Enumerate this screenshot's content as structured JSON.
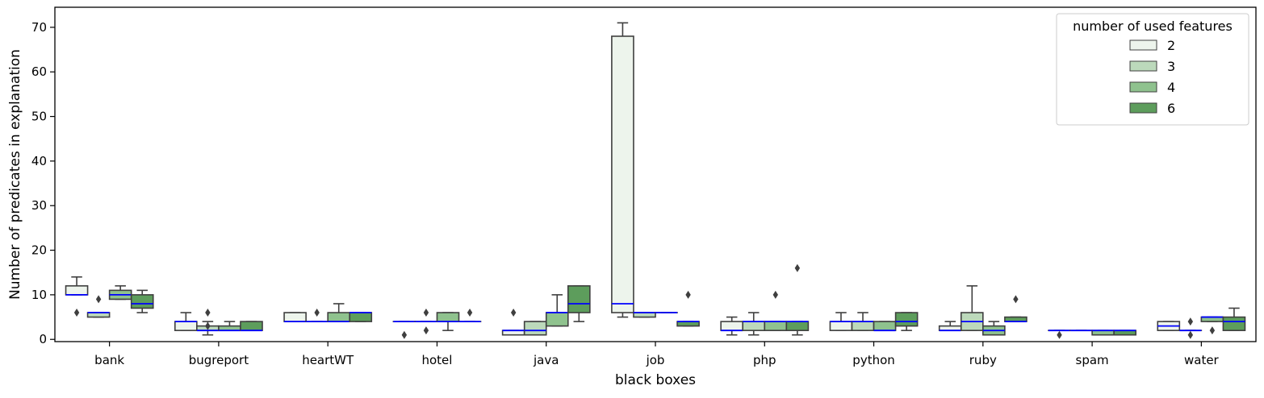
{
  "chart_data": {
    "type": "box",
    "xlabel": "black boxes",
    "ylabel": "Number of predicates in explanation",
    "ylim": [
      -0.5,
      74.5
    ],
    "yticks": [
      0,
      10,
      20,
      30,
      40,
      50,
      60,
      70
    ],
    "categories": [
      "bank",
      "bugreport",
      "heartWT",
      "hotel",
      "java",
      "job",
      "php",
      "python",
      "ruby",
      "spam",
      "water"
    ],
    "legend": {
      "title": "number of used features",
      "placement": "top-right"
    },
    "median_color": "#0000ff",
    "series": [
      {
        "name": "2",
        "color": "#edf4ec",
        "boxes": [
          {
            "q1": 10,
            "median": 10,
            "q3": 12,
            "whislo": 10,
            "whishi": 14,
            "fliers": [
              6
            ]
          },
          {
            "q1": 2,
            "median": 4,
            "q3": 4,
            "whislo": 2,
            "whishi": 6,
            "fliers": []
          },
          {
            "q1": 4,
            "median": 4,
            "q3": 6,
            "whislo": 4,
            "whishi": 6,
            "fliers": []
          },
          {
            "q1": 4,
            "median": 4,
            "q3": 4,
            "whislo": 4,
            "whishi": 4,
            "fliers": [
              1
            ]
          },
          {
            "q1": 1,
            "median": 2,
            "q3": 2,
            "whislo": 1,
            "whishi": 2,
            "fliers": [
              6
            ]
          },
          {
            "q1": 6,
            "median": 8,
            "q3": 68,
            "whislo": 5,
            "whishi": 71,
            "fliers": []
          },
          {
            "q1": 2,
            "median": 2,
            "q3": 4,
            "whislo": 1,
            "whishi": 5,
            "fliers": []
          },
          {
            "q1": 2,
            "median": 4,
            "q3": 4,
            "whislo": 2,
            "whishi": 6,
            "fliers": []
          },
          {
            "q1": 2,
            "median": 2,
            "q3": 3,
            "whislo": 2,
            "whishi": 4,
            "fliers": []
          },
          {
            "q1": 2,
            "median": 2,
            "q3": 2,
            "whislo": 2,
            "whishi": 2,
            "fliers": [
              1
            ]
          },
          {
            "q1": 2,
            "median": 3,
            "q3": 4,
            "whislo": 2,
            "whishi": 4,
            "fliers": []
          }
        ]
      },
      {
        "name": "3",
        "color": "#bcd9bb",
        "boxes": [
          {
            "q1": 5,
            "median": 6,
            "q3": 6,
            "whislo": 5,
            "whishi": 6,
            "fliers": [
              9
            ]
          },
          {
            "q1": 2,
            "median": 2,
            "q3": 3,
            "whislo": 1,
            "whishi": 4,
            "fliers": [
              3,
              6
            ]
          },
          {
            "q1": 4,
            "median": 4,
            "q3": 4,
            "whislo": 4,
            "whishi": 4,
            "fliers": [
              6
            ]
          },
          {
            "q1": 4,
            "median": 4,
            "q3": 4,
            "whislo": 4,
            "whishi": 4,
            "fliers": [
              2,
              6
            ]
          },
          {
            "q1": 1,
            "median": 2,
            "q3": 4,
            "whislo": 1,
            "whishi": 4,
            "fliers": []
          },
          {
            "q1": 5,
            "median": 6,
            "q3": 6,
            "whislo": 5,
            "whishi": 6,
            "fliers": []
          },
          {
            "q1": 2,
            "median": 4,
            "q3": 4,
            "whislo": 1,
            "whishi": 6,
            "fliers": []
          },
          {
            "q1": 2,
            "median": 4,
            "q3": 4,
            "whislo": 2,
            "whishi": 6,
            "fliers": []
          },
          {
            "q1": 2,
            "median": 4,
            "q3": 6,
            "whislo": 2,
            "whishi": 12,
            "fliers": []
          },
          {
            "q1": 2,
            "median": 2,
            "q3": 2,
            "whislo": 2,
            "whishi": 2,
            "fliers": []
          },
          {
            "q1": 2,
            "median": 2,
            "q3": 2,
            "whislo": 2,
            "whishi": 2,
            "fliers": [
              1,
              4
            ]
          }
        ]
      },
      {
        "name": "4",
        "color": "#8fc28e",
        "boxes": [
          {
            "q1": 9,
            "median": 10,
            "q3": 11,
            "whislo": 9,
            "whishi": 12,
            "fliers": []
          },
          {
            "q1": 2,
            "median": 2,
            "q3": 3,
            "whislo": 2,
            "whishi": 4,
            "fliers": []
          },
          {
            "q1": 4,
            "median": 4,
            "q3": 6,
            "whislo": 4,
            "whishi": 8,
            "fliers": []
          },
          {
            "q1": 4,
            "median": 4,
            "q3": 6,
            "whislo": 2,
            "whishi": 6,
            "fliers": []
          },
          {
            "q1": 3,
            "median": 6,
            "q3": 6,
            "whislo": 3,
            "whishi": 10,
            "fliers": []
          },
          {
            "q1": 6,
            "median": 6,
            "q3": 6,
            "whislo": 6,
            "whishi": 6,
            "fliers": []
          },
          {
            "q1": 2,
            "median": 4,
            "q3": 4,
            "whislo": 2,
            "whishi": 4,
            "fliers": [
              10
            ]
          },
          {
            "q1": 2,
            "median": 2,
            "q3": 4,
            "whislo": 2,
            "whishi": 4,
            "fliers": []
          },
          {
            "q1": 1,
            "median": 2,
            "q3": 3,
            "whislo": 1,
            "whishi": 4,
            "fliers": []
          },
          {
            "q1": 1,
            "median": 2,
            "q3": 2,
            "whislo": 1,
            "whishi": 2,
            "fliers": []
          },
          {
            "q1": 4,
            "median": 5,
            "q3": 5,
            "whislo": 4,
            "whishi": 5,
            "fliers": [
              2
            ]
          }
        ]
      },
      {
        "name": "6",
        "color": "#5d9d5c",
        "boxes": [
          {
            "q1": 7,
            "median": 8,
            "q3": 10,
            "whislo": 6,
            "whishi": 11,
            "fliers": []
          },
          {
            "q1": 2,
            "median": 2,
            "q3": 4,
            "whislo": 2,
            "whishi": 4,
            "fliers": []
          },
          {
            "q1": 4,
            "median": 6,
            "q3": 6,
            "whislo": 4,
            "whishi": 6,
            "fliers": []
          },
          {
            "q1": 4,
            "median": 4,
            "q3": 4,
            "whislo": 4,
            "whishi": 4,
            "fliers": [
              6
            ]
          },
          {
            "q1": 6,
            "median": 8,
            "q3": 12,
            "whislo": 4,
            "whishi": 12,
            "fliers": []
          },
          {
            "q1": 3,
            "median": 4,
            "q3": 4,
            "whislo": 3,
            "whishi": 4,
            "fliers": [
              10
            ]
          },
          {
            "q1": 2,
            "median": 4,
            "q3": 4,
            "whislo": 1,
            "whishi": 4,
            "fliers": [
              16
            ]
          },
          {
            "q1": 3,
            "median": 4,
            "q3": 6,
            "whislo": 2,
            "whishi": 6,
            "fliers": []
          },
          {
            "q1": 4,
            "median": 4,
            "q3": 5,
            "whislo": 4,
            "whishi": 5,
            "fliers": [
              9
            ]
          },
          {
            "q1": 1,
            "median": 2,
            "q3": 2,
            "whislo": 1,
            "whishi": 2,
            "fliers": []
          },
          {
            "q1": 2,
            "median": 4,
            "q3": 5,
            "whislo": 2,
            "whishi": 7,
            "fliers": []
          }
        ]
      }
    ]
  }
}
